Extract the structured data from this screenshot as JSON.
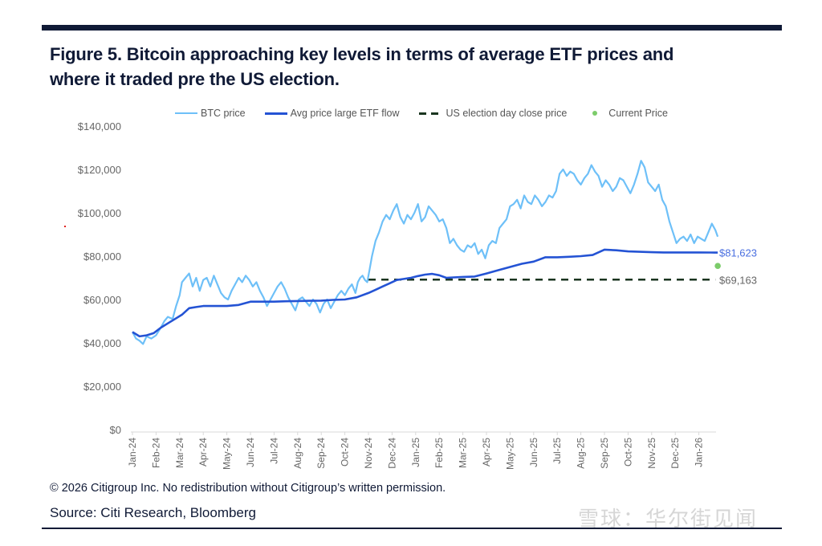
{
  "header": {
    "title_line1": "Figure 5. Bitcoin approaching key levels in terms of average ETF prices and",
    "title_line2": "where it traded pre the US election."
  },
  "footer": {
    "copyright": "© 2026 Citigroup Inc. No redistribution without Citigroup’s written permission.",
    "source": "Source: Citi Research, Bloomberg",
    "watermark": "雪球：华尔街见闻"
  },
  "colors": {
    "btc": "#6ec0f8",
    "avg": "#2453d4",
    "election": "#1a3520",
    "current": "#7ccc6a",
    "rule": "#101a36"
  },
  "chart_data": {
    "type": "line",
    "title": "Figure 5. Bitcoin approaching key levels in terms of average ETF prices and where it traded pre the US election.",
    "xlabel": "",
    "ylabel": "",
    "ylim": [
      0,
      140000
    ],
    "yticks": [
      0,
      20000,
      40000,
      60000,
      80000,
      100000,
      120000,
      140000
    ],
    "ytick_labels": [
      "$0",
      "$20,000",
      "$40,000",
      "$60,000",
      "$80,000",
      "$100,000",
      "$120,000",
      "$140,000"
    ],
    "xtick_labels": [
      "Jan-24",
      "Feb-24",
      "Mar-24",
      "Apr-24",
      "May-24",
      "Jun-24",
      "Jul-24",
      "Aug-24",
      "Sep-24",
      "Oct-24",
      "Nov-24",
      "Dec-24",
      "Jan-25",
      "Feb-25",
      "Mar-25",
      "Apr-25",
      "May-25",
      "Jun-25",
      "Jul-25",
      "Aug-25",
      "Sep-25",
      "Oct-25",
      "Nov-25",
      "Dec-25",
      "Jan-26"
    ],
    "grid": false,
    "legend": {
      "position": "top",
      "entries": [
        "BTC price",
        "Avg price large ETF flow",
        "US election day close price",
        "Current Price"
      ]
    },
    "series": [
      {
        "name": "BTC price",
        "x_months": [
          0,
          0.15,
          0.3,
          0.45,
          0.6,
          0.8,
          1.0,
          1.2,
          1.35,
          1.5,
          1.7,
          1.85,
          2.0,
          2.1,
          2.25,
          2.4,
          2.55,
          2.7,
          2.85,
          3.0,
          3.15,
          3.3,
          3.45,
          3.6,
          3.75,
          3.9,
          4.05,
          4.2,
          4.35,
          4.5,
          4.65,
          4.8,
          4.95,
          5.1,
          5.25,
          5.4,
          5.55,
          5.7,
          5.85,
          6.0,
          6.15,
          6.3,
          6.45,
          6.6,
          6.75,
          6.9,
          7.05,
          7.2,
          7.35,
          7.5,
          7.65,
          7.8,
          7.95,
          8.1,
          8.25,
          8.4,
          8.55,
          8.7,
          8.85,
          9.0,
          9.15,
          9.3,
          9.45,
          9.55,
          9.65,
          9.75,
          9.85,
          9.95,
          10.05,
          10.15,
          10.3,
          10.45,
          10.6,
          10.75,
          10.9,
          11.05,
          11.2,
          11.35,
          11.5,
          11.65,
          11.8,
          11.95,
          12.1,
          12.25,
          12.4,
          12.55,
          12.7,
          12.85,
          13.0,
          13.15,
          13.3,
          13.45,
          13.6,
          13.75,
          13.9,
          14.05,
          14.2,
          14.35,
          14.5,
          14.65,
          14.8,
          14.95,
          15.1,
          15.25,
          15.4,
          15.55,
          15.7,
          15.85,
          16.0,
          16.15,
          16.3,
          16.45,
          16.6,
          16.75,
          16.9,
          17.05,
          17.2,
          17.35,
          17.5,
          17.65,
          17.8,
          17.95,
          18.1,
          18.25,
          18.4,
          18.55,
          18.7,
          18.85,
          19.0,
          19.15,
          19.3,
          19.45,
          19.6,
          19.75,
          19.9,
          20.05,
          20.2,
          20.35,
          20.5,
          20.65,
          20.8,
          20.95,
          21.1,
          21.25,
          21.4,
          21.55,
          21.7,
          21.85,
          22.0,
          22.15,
          22.3,
          22.45,
          22.6,
          22.75,
          22.9,
          23.05,
          23.2,
          23.35,
          23.5,
          23.65,
          23.8,
          23.95,
          24.1,
          24.25,
          24.4,
          24.55,
          24.7,
          24.8
        ],
        "values": [
          45000,
          42000,
          41000,
          39500,
          43000,
          42000,
          43500,
          47000,
          50000,
          52000,
          51000,
          57000,
          62000,
          68000,
          70000,
          72000,
          66000,
          70000,
          64000,
          69000,
          70000,
          66000,
          71000,
          67000,
          63000,
          61000,
          60000,
          64000,
          67000,
          70000,
          68000,
          71000,
          69000,
          66000,
          68000,
          64000,
          61000,
          57000,
          60000,
          63000,
          66000,
          68000,
          65000,
          61000,
          58000,
          55000,
          60000,
          61000,
          59000,
          57000,
          60000,
          58000,
          54000,
          58000,
          60000,
          56000,
          59000,
          62000,
          64000,
          62000,
          65000,
          67000,
          63000,
          68000,
          70000,
          71000,
          69000,
          68000,
          74000,
          80000,
          87000,
          91000,
          96000,
          99000,
          97000,
          101000,
          104000,
          98000,
          95000,
          99000,
          97000,
          100000,
          104000,
          96000,
          98000,
          103000,
          101000,
          99000,
          96000,
          97000,
          93000,
          86000,
          88000,
          85000,
          83000,
          82000,
          85000,
          84000,
          86000,
          81000,
          83000,
          79000,
          85000,
          87000,
          86000,
          93000,
          95000,
          97000,
          103000,
          104000,
          106000,
          102000,
          108000,
          105000,
          104000,
          108000,
          106000,
          103000,
          105000,
          108000,
          107000,
          110000,
          118000,
          120000,
          117000,
          119000,
          118000,
          115000,
          113000,
          116000,
          118000,
          122000,
          119000,
          117000,
          112000,
          115000,
          113000,
          110000,
          112000,
          116000,
          115000,
          112000,
          109000,
          113000,
          118000,
          124000,
          121000,
          114000,
          112000,
          110000,
          113000,
          106000,
          103000,
          96000,
          91000,
          86000,
          88000,
          89000,
          87000,
          90000,
          86000,
          89000,
          88000,
          87000,
          91000,
          95000,
          92000,
          89000,
          87000,
          86000,
          80000,
          75500
        ]
      },
      {
        "name": "Avg price large ETF flow",
        "x_months": [
          0,
          0.3,
          0.6,
          0.9,
          1.2,
          1.5,
          1.8,
          2.1,
          2.4,
          2.7,
          3.0,
          3.5,
          4.0,
          4.5,
          5.0,
          5.5,
          6.0,
          6.5,
          7.0,
          7.5,
          8.0,
          8.5,
          9.0,
          9.5,
          10.0,
          10.3,
          10.6,
          10.9,
          11.2,
          11.5,
          11.8,
          12.1,
          12.4,
          12.7,
          13.0,
          13.3,
          13.6,
          14.0,
          14.5,
          15.0,
          15.5,
          16.0,
          16.5,
          17.0,
          17.5,
          18.0,
          18.5,
          19.0,
          19.5,
          20.0,
          20.5,
          21.0,
          21.5,
          22.0,
          22.5,
          23.0,
          23.5,
          24.0,
          24.5,
          24.8
        ],
        "values": [
          45000,
          43000,
          43500,
          44500,
          47000,
          49000,
          51000,
          53000,
          56000,
          56500,
          57000,
          57000,
          57000,
          57500,
          59000,
          59000,
          59000,
          59200,
          59300,
          59400,
          59500,
          59800,
          60000,
          61000,
          63000,
          64500,
          66000,
          67500,
          69000,
          69500,
          70000,
          70800,
          71500,
          71800,
          71200,
          70000,
          70200,
          70400,
          70600,
          72000,
          73500,
          75000,
          76500,
          77500,
          79500,
          79500,
          79700,
          80000,
          80500,
          83000,
          82700,
          82200,
          82000,
          81800,
          81700,
          81700,
          81700,
          81700,
          81650,
          81623
        ]
      },
      {
        "name": "US election day close price",
        "style": "dashed",
        "x_range_months": [
          10.0,
          24.7
        ],
        "value": 69163,
        "label": "$69,163"
      },
      {
        "name": "Current Price",
        "style": "point",
        "x_month": 24.8,
        "value": 75500
      }
    ],
    "annotations": [
      {
        "text": "$81,623",
        "refers_to": "Avg price large ETF flow",
        "value": 81623
      },
      {
        "text": "$69,163",
        "refers_to": "US election day close price",
        "value": 69163
      }
    ]
  }
}
